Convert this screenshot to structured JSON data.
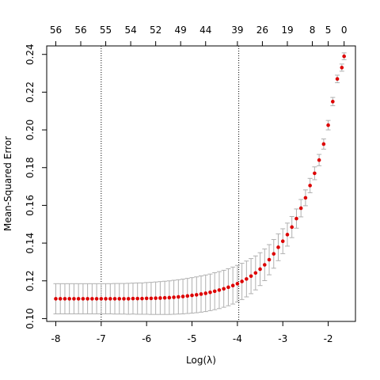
{
  "chart_data": {
    "type": "scatter",
    "title": "",
    "xlabel": "Log(λ)",
    "ylabel": "Mean-Squared Error",
    "xlim": [
      -8.2,
      -1.4
    ],
    "ylim": [
      0.0985,
      0.2445
    ],
    "x_ticks": [
      "-8",
      "-7",
      "-6",
      "-5",
      "-4",
      "-3",
      "-2"
    ],
    "y_ticks": [
      "0.10",
      "0.12",
      "0.14",
      "0.16",
      "0.18",
      "0.20",
      "0.22",
      "0.24"
    ],
    "top_axis": {
      "tick_positions": [
        -8,
        -7.45,
        -6.9,
        -6.35,
        -5.8,
        -5.25,
        -4.7,
        -4.0,
        -3.45,
        -2.9,
        -2.35,
        -2.0,
        -1.65
      ],
      "labels": [
        "56",
        "56",
        "55",
        "54",
        "52",
        "49",
        "44",
        "39",
        "26",
        "19",
        "8",
        "5",
        "0"
      ]
    },
    "vlines": [
      -7.0,
      -3.97
    ],
    "colors": {
      "point": "#dd0000",
      "errorbar": "#b0b0b0",
      "vline": "#000000"
    },
    "series": [
      {
        "x": [
          -8.0,
          -7.9,
          -7.8,
          -7.7,
          -7.6,
          -7.5,
          -7.4,
          -7.3,
          -7.2,
          -7.1,
          -7.0,
          -6.9,
          -6.8,
          -6.7,
          -6.6,
          -6.5,
          -6.4,
          -6.3,
          -6.2,
          -6.1,
          -6.0,
          -5.9,
          -5.8,
          -5.7,
          -5.6,
          -5.5,
          -5.4,
          -5.3,
          -5.2,
          -5.1,
          -5.0,
          -4.9,
          -4.8,
          -4.7,
          -4.6,
          -4.5,
          -4.4,
          -4.3,
          -4.2,
          -4.1,
          -4.0,
          -3.9,
          -3.8,
          -3.7,
          -3.6,
          -3.5,
          -3.4,
          -3.3,
          -3.2,
          -3.1,
          -3.0,
          -2.9,
          -2.8,
          -2.7,
          -2.6,
          -2.5,
          -2.4,
          -2.3,
          -2.2,
          -2.1,
          -2.0,
          -1.9,
          -1.8,
          -1.7,
          -1.65
        ],
        "y": [
          0.1105,
          0.1105,
          0.1105,
          0.1105,
          0.1105,
          0.1105,
          0.1105,
          0.1105,
          0.1105,
          0.1105,
          0.1105,
          0.1105,
          0.1105,
          0.1105,
          0.1105,
          0.1105,
          0.1105,
          0.1106,
          0.1106,
          0.1106,
          0.1107,
          0.1107,
          0.1108,
          0.1109,
          0.111,
          0.1111,
          0.1113,
          0.1115,
          0.1117,
          0.112,
          0.1123,
          0.1126,
          0.113,
          0.1134,
          0.1139,
          0.1145,
          0.1151,
          0.1158,
          0.1166,
          0.1175,
          0.1185,
          0.1197,
          0.121,
          0.1225,
          0.1242,
          0.1262,
          0.1285,
          0.1312,
          0.1343,
          0.1378,
          0.141,
          0.1445,
          0.1485,
          0.153,
          0.1585,
          0.164,
          0.1705,
          0.177,
          0.184,
          0.1925,
          0.2025,
          0.215,
          0.227,
          0.233,
          0.239
        ],
        "err": [
          0.008,
          0.008,
          0.008,
          0.008,
          0.008,
          0.008,
          0.008,
          0.008,
          0.008,
          0.008,
          0.008,
          0.008,
          0.008,
          0.0081,
          0.0081,
          0.0081,
          0.0082,
          0.0082,
          0.0083,
          0.0083,
          0.0084,
          0.0085,
          0.0086,
          0.0087,
          0.0088,
          0.0089,
          0.009,
          0.0091,
          0.0092,
          0.0093,
          0.0094,
          0.0095,
          0.0096,
          0.0097,
          0.0097,
          0.0098,
          0.0098,
          0.0098,
          0.0098,
          0.0098,
          0.0097,
          0.0096,
          0.0095,
          0.0093,
          0.009,
          0.0087,
          0.0084,
          0.008,
          0.0076,
          0.0071,
          0.0066,
          0.0061,
          0.0056,
          0.0051,
          0.0046,
          0.0042,
          0.0038,
          0.0034,
          0.003,
          0.0027,
          0.0025,
          0.0022,
          0.002,
          0.0019,
          0.0018
        ]
      }
    ]
  }
}
